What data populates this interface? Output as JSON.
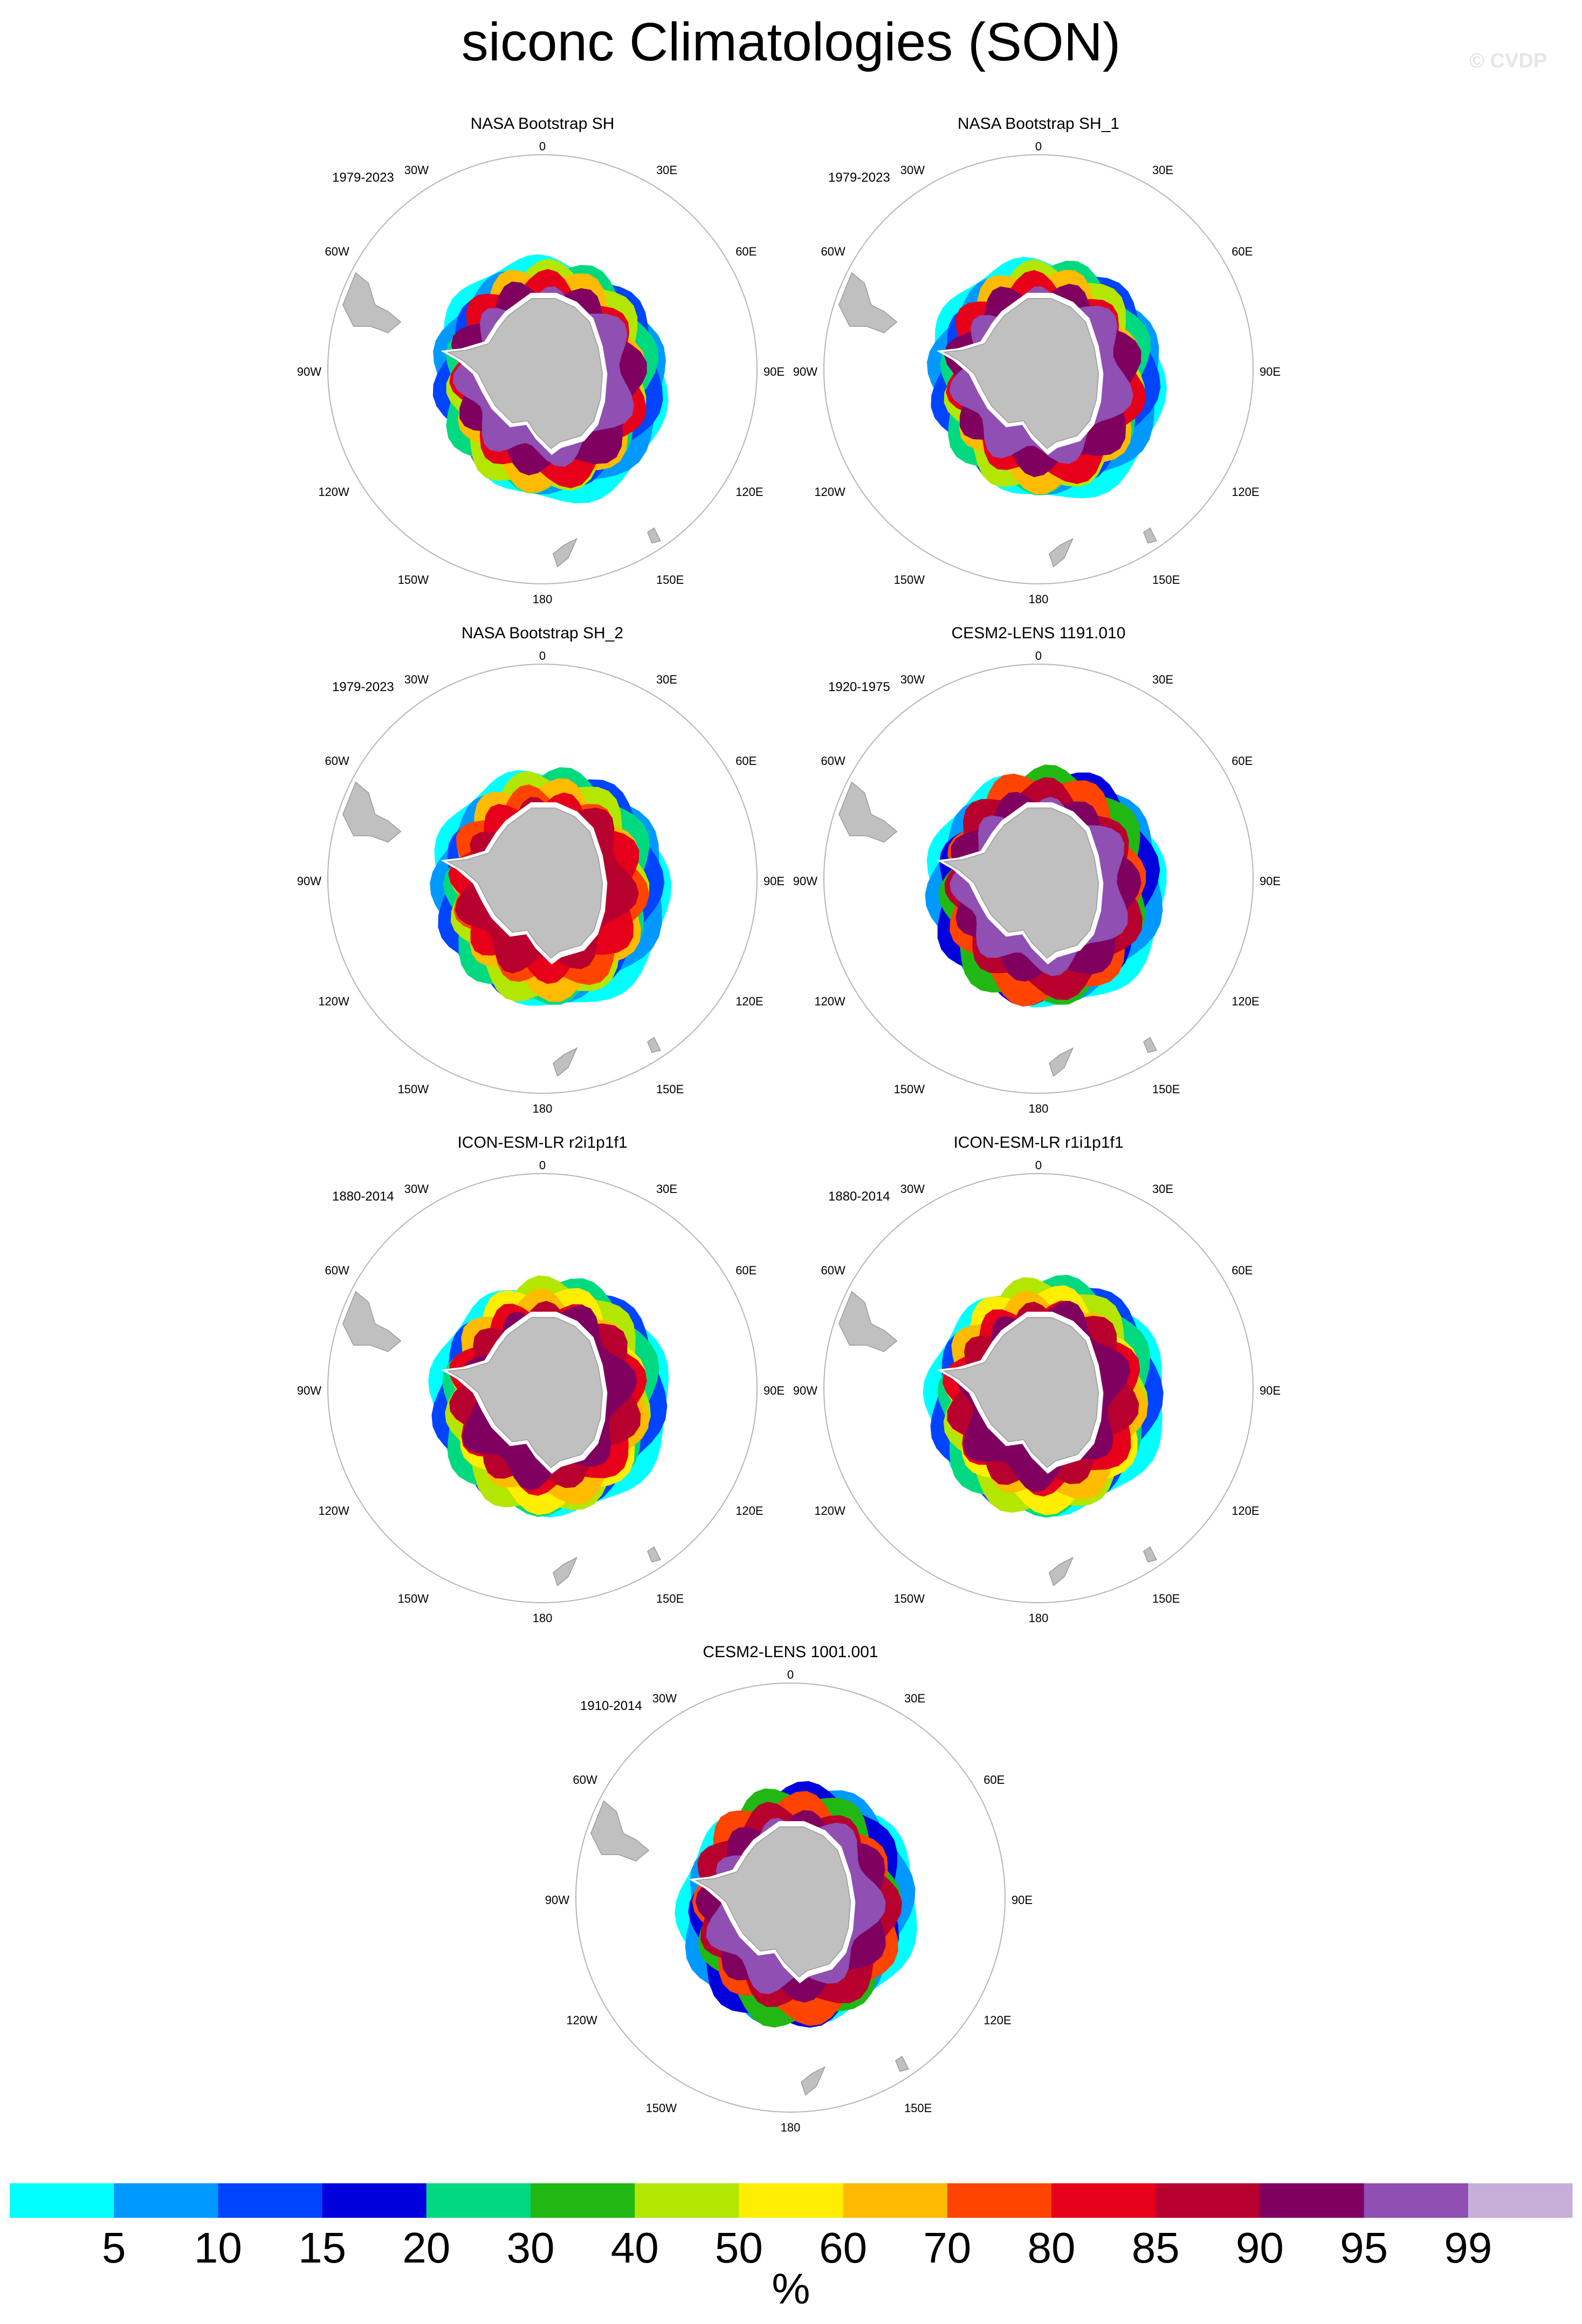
{
  "title": "siconc Climatologies (SON)",
  "watermark": "© CVDP",
  "colors": {
    "land": "#c0c0c0",
    "outline": "#b5b5b5",
    "ice_hole": "#ffffff"
  },
  "lon_labels": [
    "0",
    "30E",
    "60E",
    "90E",
    "120E",
    "150E",
    "180",
    "150W",
    "120W",
    "90W",
    "60W",
    "30W"
  ],
  "panels": [
    {
      "title": "NASA Bootstrap SH",
      "years": "1979-2023",
      "style": "obs"
    },
    {
      "title": "NASA Bootstrap SH_1",
      "years": "1979-2023",
      "style": "obs"
    },
    {
      "title": "NASA Bootstrap SH_2",
      "years": "1979-2023",
      "style": "obs2"
    },
    {
      "title": "CESM2-LENS 1191.010",
      "years": "1920-1975",
      "style": "cesm"
    },
    {
      "title": "ICON-ESM-LR r2i1p1f1",
      "years": "1880-2014",
      "style": "icon"
    },
    {
      "title": "ICON-ESM-LR r1i1p1f1",
      "years": "1880-2014",
      "style": "icon"
    },
    {
      "title": "CESM2-LENS 1001.001",
      "years": "1910-2014",
      "style": "cesm"
    }
  ],
  "chart_data": {
    "type": "heatmap",
    "variable": "siconc",
    "season": "SON",
    "units": "%",
    "colorbar": {
      "levels": [
        "5",
        "10",
        "15",
        "20",
        "30",
        "40",
        "50",
        "60",
        "70",
        "80",
        "85",
        "90",
        "95",
        "99"
      ],
      "colors": [
        "#00ffff",
        "#0099ff",
        "#0044ff",
        "#0000dd",
        "#00d97f",
        "#22b814",
        "#b3e600",
        "#ffee00",
        "#ffbb00",
        "#ff4400",
        "#e6001a",
        "#b8002e",
        "#800060",
        "#8f4fb3",
        "#c7aed9"
      ]
    }
  }
}
